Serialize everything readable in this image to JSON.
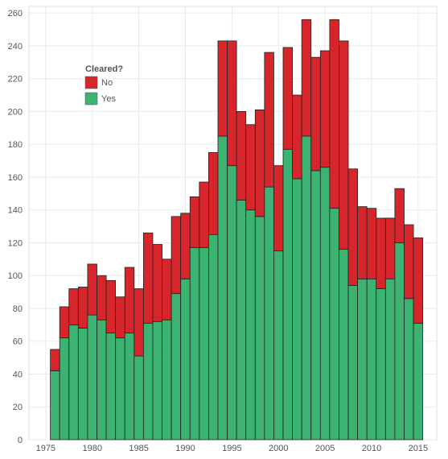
{
  "chart_data": {
    "type": "bar",
    "stacked": true,
    "x": [
      1976,
      1977,
      1978,
      1979,
      1980,
      1981,
      1982,
      1983,
      1984,
      1985,
      1986,
      1987,
      1988,
      1989,
      1990,
      1991,
      1992,
      1993,
      1994,
      1995,
      1996,
      1997,
      1998,
      1999,
      2000,
      2001,
      2002,
      2003,
      2004,
      2005,
      2006,
      2007,
      2008,
      2009,
      2010,
      2011,
      2012,
      2013,
      2014,
      2015
    ],
    "series": [
      {
        "name": "Yes",
        "color": "#3cb371",
        "values": [
          42,
          62,
          70,
          68,
          76,
          73,
          65,
          62,
          65,
          51,
          71,
          72,
          73,
          89,
          98,
          117,
          117,
          125,
          185,
          167,
          146,
          140,
          136,
          154,
          115,
          177,
          159,
          185,
          164,
          166,
          141,
          116,
          94,
          98,
          98,
          92,
          98,
          120,
          86,
          71
        ]
      },
      {
        "name": "No",
        "color": "#d7262b",
        "values": [
          13,
          19,
          22,
          25,
          31,
          27,
          32,
          25,
          40,
          41,
          55,
          47,
          37,
          47,
          40,
          31,
          40,
          50,
          58,
          76,
          54,
          52,
          65,
          82,
          52,
          62,
          51,
          71,
          69,
          71,
          115,
          127,
          71,
          44,
          43,
          43,
          37,
          33,
          45,
          52
        ]
      }
    ],
    "x_ticks": [
      "1975",
      "1980",
      "1985",
      "1990",
      "1995",
      "2000",
      "2005",
      "2010",
      "2015"
    ],
    "y_ticks": [
      "0",
      "20",
      "40",
      "60",
      "80",
      "100",
      "120",
      "140",
      "160",
      "180",
      "200",
      "220",
      "240",
      "260"
    ],
    "xlim": [
      1973.2,
      2017
    ],
    "ylim": [
      0,
      264
    ],
    "grid": true,
    "title": "",
    "xlabel": "",
    "ylabel": "",
    "legend": {
      "title": "Cleared?",
      "position": "top-left",
      "entries": [
        {
          "label": "No",
          "color": "#d7262b"
        },
        {
          "label": "Yes",
          "color": "#3cb371"
        }
      ]
    }
  }
}
